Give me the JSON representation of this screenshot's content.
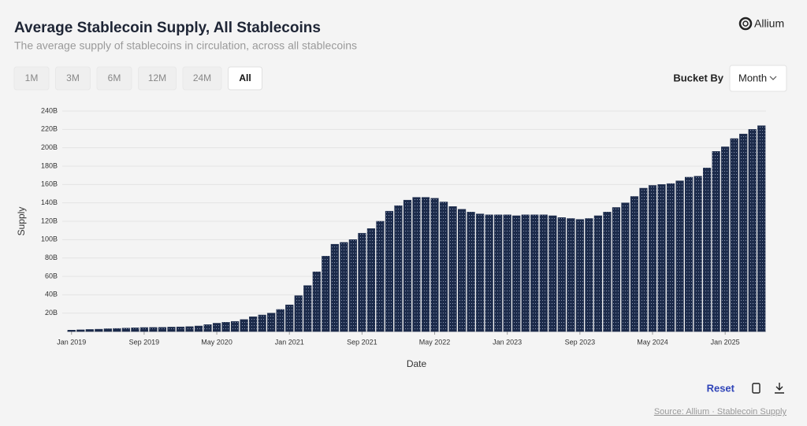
{
  "header": {
    "title": "Average Stablecoin Supply, All Stablecoins",
    "subtitle": "The average supply of stablecoins in circulation, across all stablecoins",
    "brand": "Allium"
  },
  "controls": {
    "ranges": [
      "1M",
      "3M",
      "6M",
      "12M",
      "24M",
      "All"
    ],
    "selected_range": "All",
    "bucket_label": "Bucket By",
    "bucket_value": "Month"
  },
  "footer": {
    "reset": "Reset",
    "source": "Source: Allium · Stablecoin Supply"
  },
  "chart_data": {
    "type": "bar",
    "x_label": "Date",
    "y_label": "Supply",
    "color": "#1c2b4b",
    "grid": true,
    "categories": [
      "Jan 2019",
      null,
      null,
      null,
      null,
      null,
      null,
      null,
      "Sep 2019",
      null,
      null,
      null,
      null,
      null,
      null,
      null,
      "May 2020",
      null,
      null,
      null,
      null,
      null,
      null,
      null,
      "Jan 2021",
      null,
      null,
      null,
      null,
      null,
      null,
      null,
      "Sep 2021",
      null,
      null,
      null,
      null,
      null,
      null,
      null,
      "May 2022",
      null,
      null,
      null,
      null,
      null,
      null,
      null,
      "Jan 2023",
      null,
      null,
      null,
      null,
      null,
      null,
      null,
      "Sep 2023",
      null,
      null,
      null,
      null,
      null,
      null,
      null,
      "May 2024",
      null,
      null,
      null,
      null,
      null,
      null,
      null,
      "Jan 2025",
      null,
      null,
      null,
      null
    ],
    "values": [
      1.5,
      1.8,
      2.2,
      2.5,
      3,
      3.3,
      3.7,
      4,
      4.3,
      4.4,
      4.5,
      4.8,
      5,
      5.3,
      6,
      7.5,
      9,
      10,
      11,
      13,
      16,
      18,
      20,
      24,
      29,
      39,
      50,
      65,
      82,
      95,
      97,
      100,
      107,
      112,
      120,
      131,
      137,
      143,
      146,
      146,
      145,
      141,
      136,
      133,
      130,
      128,
      127,
      127,
      127,
      126,
      127,
      127,
      127,
      126,
      124,
      123,
      122,
      123,
      126,
      130,
      135,
      140,
      147,
      156,
      159,
      160,
      161,
      164,
      168,
      169,
      178,
      196,
      201,
      210,
      215,
      220,
      224
    ],
    "ylim": [
      0,
      240
    ],
    "yticks": [
      {
        "value": 20,
        "label": "20B"
      },
      {
        "value": 40,
        "label": "40B"
      },
      {
        "value": 60,
        "label": "60B"
      },
      {
        "value": 80,
        "label": "80B"
      },
      {
        "value": 100,
        "label": "100B"
      },
      {
        "value": 120,
        "label": "120B"
      },
      {
        "value": 140,
        "label": "140B"
      },
      {
        "value": 160,
        "label": "160B"
      },
      {
        "value": 180,
        "label": "180B"
      },
      {
        "value": 200,
        "label": "200B"
      },
      {
        "value": 220,
        "label": "220B"
      },
      {
        "value": 240,
        "label": "240B"
      }
    ]
  }
}
